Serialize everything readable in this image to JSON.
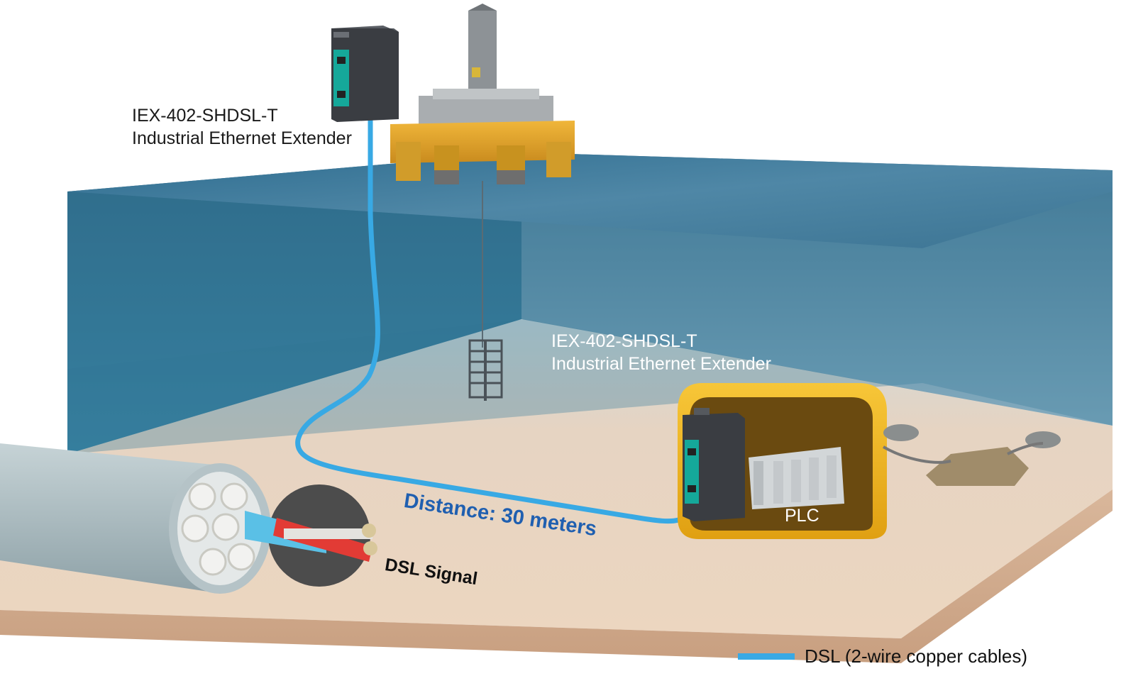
{
  "labels": {
    "top_extender_model": "IEX-402-SHDSL-T",
    "top_extender_desc": "Industrial Ethernet Extender",
    "bottom_extender_model": "IEX-402-SHDSL-T",
    "bottom_extender_desc": "Industrial Ethernet Extender",
    "distance": "Distance: 30 meters",
    "dsl_signal": "DSL Signal",
    "plc": "PLC"
  },
  "legend": {
    "label": "DSL (2-wire copper cables)",
    "color": "#38a9e4"
  },
  "colors": {
    "water": "#1d5f80",
    "sand": "#e9d3bf",
    "rig_yellow": "#e7a930",
    "enclosure_yellow": "#f3b61f",
    "extender_dark": "#3a3d42",
    "extender_teal": "#15a89a",
    "distance_text": "#1f5fb0"
  },
  "icons": [
    "oil-rig-icon",
    "ethernet-extender-icon",
    "plc-icon",
    "cable-cross-section-icon",
    "subsea-manifold-icon"
  ]
}
